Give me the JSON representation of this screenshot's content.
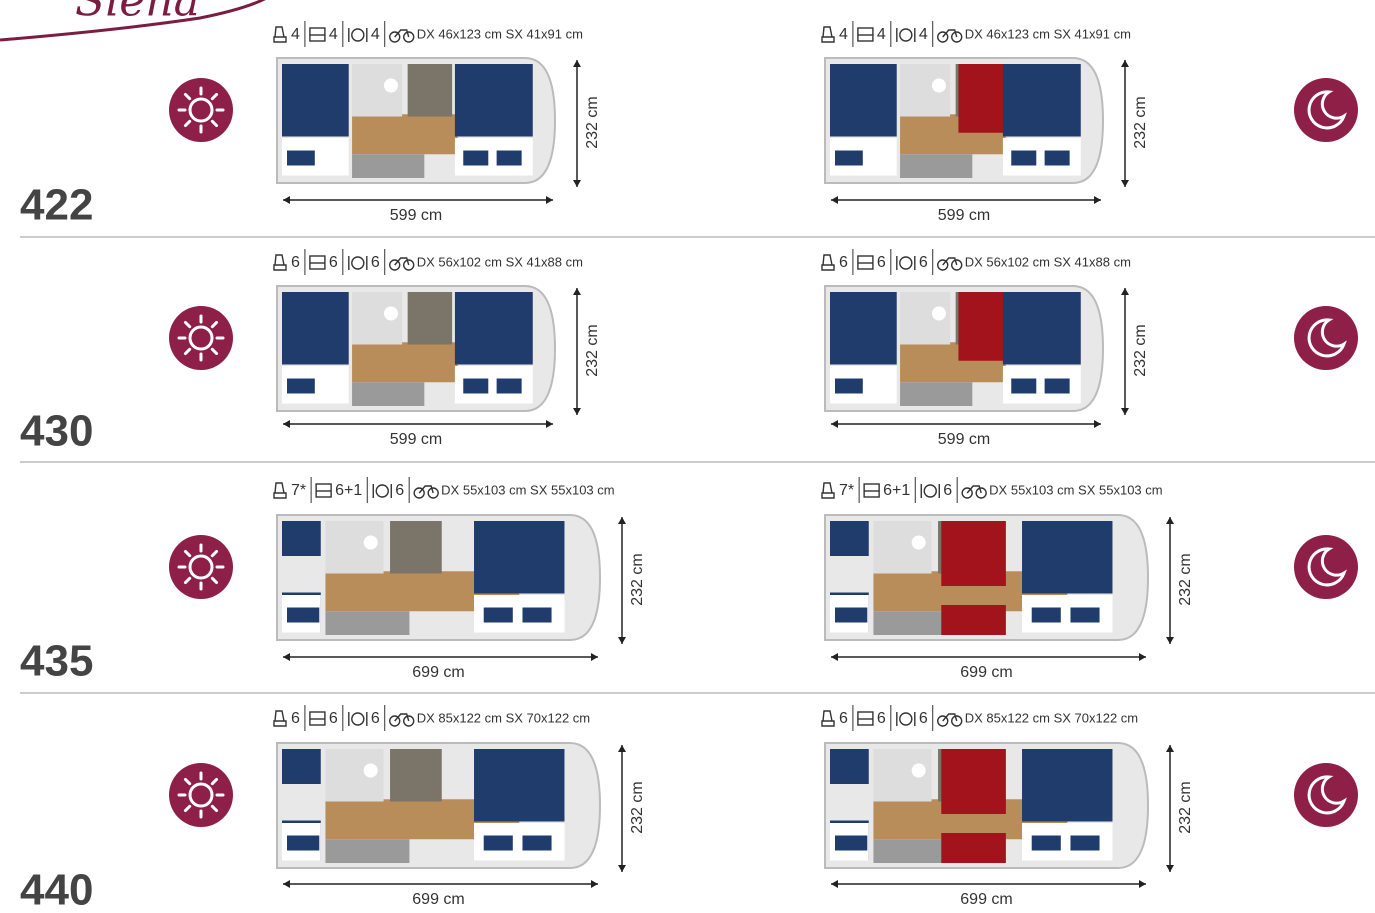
{
  "logo": "Siena",
  "models": [
    {
      "name": "422",
      "layouts": [
        {
          "seats": "4",
          "beds": "4",
          "dining": "4",
          "bike_garage": "DX 46x123 cm SX 41x91 cm",
          "width": "232 cm",
          "length": "599 cm"
        },
        {
          "seats": "4",
          "beds": "4",
          "dining": "4",
          "bike_garage": "DX 46x123 cm SX 41x91 cm",
          "width": "232 cm",
          "length": "599 cm"
        }
      ]
    },
    {
      "name": "430",
      "layouts": [
        {
          "seats": "6",
          "beds": "6",
          "dining": "6",
          "bike_garage": "DX 56x102 cm SX 41x88 cm",
          "width": "232 cm",
          "length": "599 cm"
        },
        {
          "seats": "6",
          "beds": "6",
          "dining": "6",
          "bike_garage": "DX 56x102 cm SX 41x88 cm",
          "width": "232 cm",
          "length": "599 cm"
        }
      ]
    },
    {
      "name": "435",
      "layouts": [
        {
          "seats": "7*",
          "beds": "6+1",
          "dining": "6",
          "bike_garage": "DX 55x103 cm SX 55x103 cm",
          "width": "232 cm",
          "length": "699 cm"
        },
        {
          "seats": "7*",
          "beds": "6+1",
          "dining": "6",
          "bike_garage": "DX 55x103 cm SX 55x103 cm",
          "width": "232 cm",
          "length": "699 cm"
        }
      ]
    },
    {
      "name": "440",
      "layouts": [
        {
          "seats": "6",
          "beds": "6",
          "dining": "6",
          "bike_garage": "DX 85x122 cm SX 70x122 cm",
          "width": "232 cm",
          "length": "699 cm"
        },
        {
          "seats": "6",
          "beds": "6",
          "dining": "6",
          "bike_garage": "DX 85x122 cm SX 70x122 cm",
          "width": "232 cm",
          "length": "699 cm"
        }
      ]
    }
  ]
}
